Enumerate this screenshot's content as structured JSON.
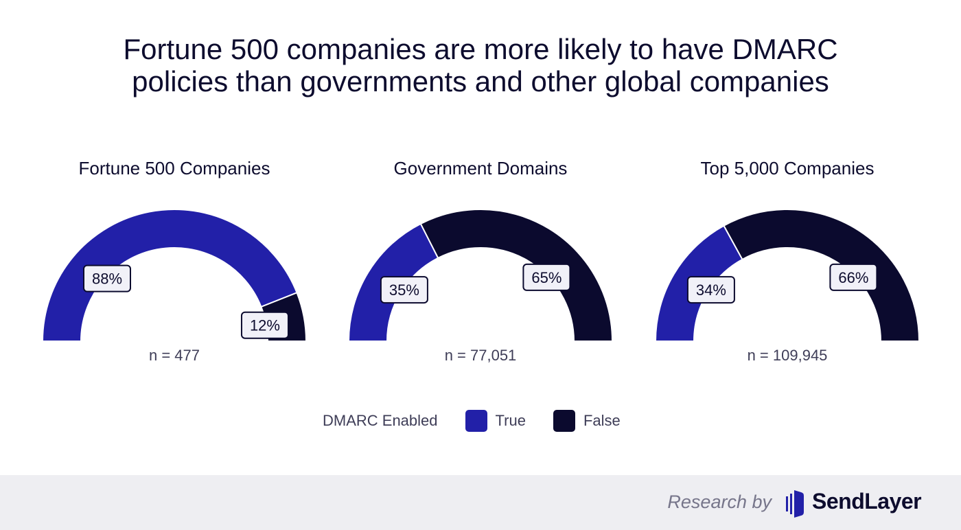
{
  "title_line1": "Fortune 500 companies are more likely to have DMARC",
  "title_line2": "policies than governments and other global companies",
  "colors": {
    "true": "#2220a8",
    "false": "#0b0a2e"
  },
  "chart_data": [
    {
      "type": "pie",
      "subtype": "half-donut gauge",
      "title": "Fortune 500 Companies",
      "n_label": "n = 477",
      "categories": [
        "True",
        "False"
      ],
      "values": [
        88,
        12
      ],
      "labels": [
        "88%",
        "12%"
      ]
    },
    {
      "type": "pie",
      "subtype": "half-donut gauge",
      "title": "Government Domains",
      "n_label": "n = 77,051",
      "categories": [
        "True",
        "False"
      ],
      "values": [
        35,
        65
      ],
      "labels": [
        "35%",
        "65%"
      ]
    },
    {
      "type": "pie",
      "subtype": "half-donut gauge",
      "title": "Top 5,000 Companies",
      "n_label": "n = 109,945",
      "categories": [
        "True",
        "False"
      ],
      "values": [
        34,
        66
      ],
      "labels": [
        "34%",
        "66%"
      ]
    }
  ],
  "legend": {
    "title": "DMARC Enabled",
    "items": [
      "True",
      "False"
    ],
    "placement": "bottom"
  },
  "footer": {
    "research_by": "Research by",
    "brand": "SendLayer",
    "logo_icon": "sendlayer-logo-icon"
  }
}
